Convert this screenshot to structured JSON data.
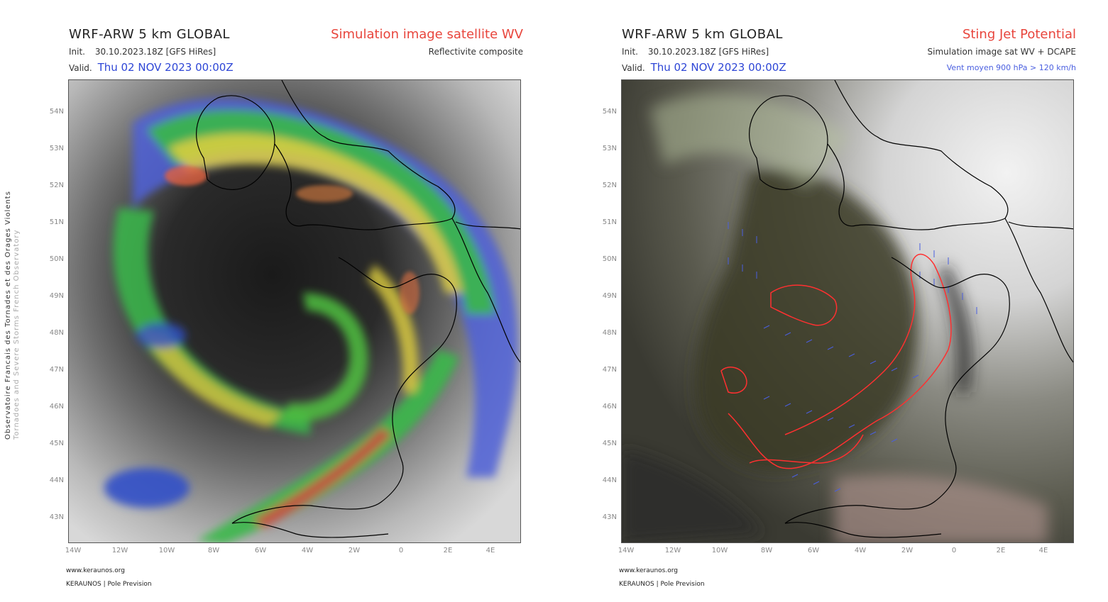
{
  "panels": [
    {
      "model_title": "WRF-ARW 5 km GLOBAL",
      "init_label": "Init.",
      "init_value": "30.10.2023.18Z [GFS HiRes]",
      "valid_label": "Valid.",
      "valid_value": "Thu 02 NOV 2023 00:00Z",
      "product_title": "Simulation image satellite WV",
      "product_subtitle": "Reflectivite composite",
      "product_subtitle2": "",
      "footer_url": "www.keraunos.org",
      "footer_org": "KERAUNOS | Pole Prevision"
    },
    {
      "model_title": "WRF-ARW 5 km GLOBAL",
      "init_label": "Init.",
      "init_value": "30.10.2023.18Z [GFS HiRes]",
      "valid_label": "Valid.",
      "valid_value": "Thu 02 NOV 2023 00:00Z",
      "product_title": "Sting Jet Potential",
      "product_subtitle": "Simulation image sat WV + DCAPE",
      "product_subtitle2": "Vent moyen 900 hPa > 120 km/h",
      "footer_url": "www.keraunos.org",
      "footer_org": "KERAUNOS | Pole Prevision"
    }
  ],
  "map_axes": {
    "lat_labels": [
      "54N",
      "53N",
      "52N",
      "51N",
      "50N",
      "49N",
      "48N",
      "47N",
      "46N",
      "45N",
      "44N",
      "43N"
    ],
    "lon_labels": [
      "14W",
      "12W",
      "10W",
      "8W",
      "6W",
      "4W",
      "2W",
      "0",
      "2E",
      "4E"
    ]
  },
  "side_credit": {
    "line1": "Observatoire Francais des Tornades et des Orages Violents",
    "line2": "Tornadoes and Severe Storms French Observatory"
  },
  "colors": {
    "title_red": "#e8453c",
    "valid_blue": "#2e46d6",
    "wind_blue": "#4a5fe0",
    "contour_red": "#ff3030"
  }
}
